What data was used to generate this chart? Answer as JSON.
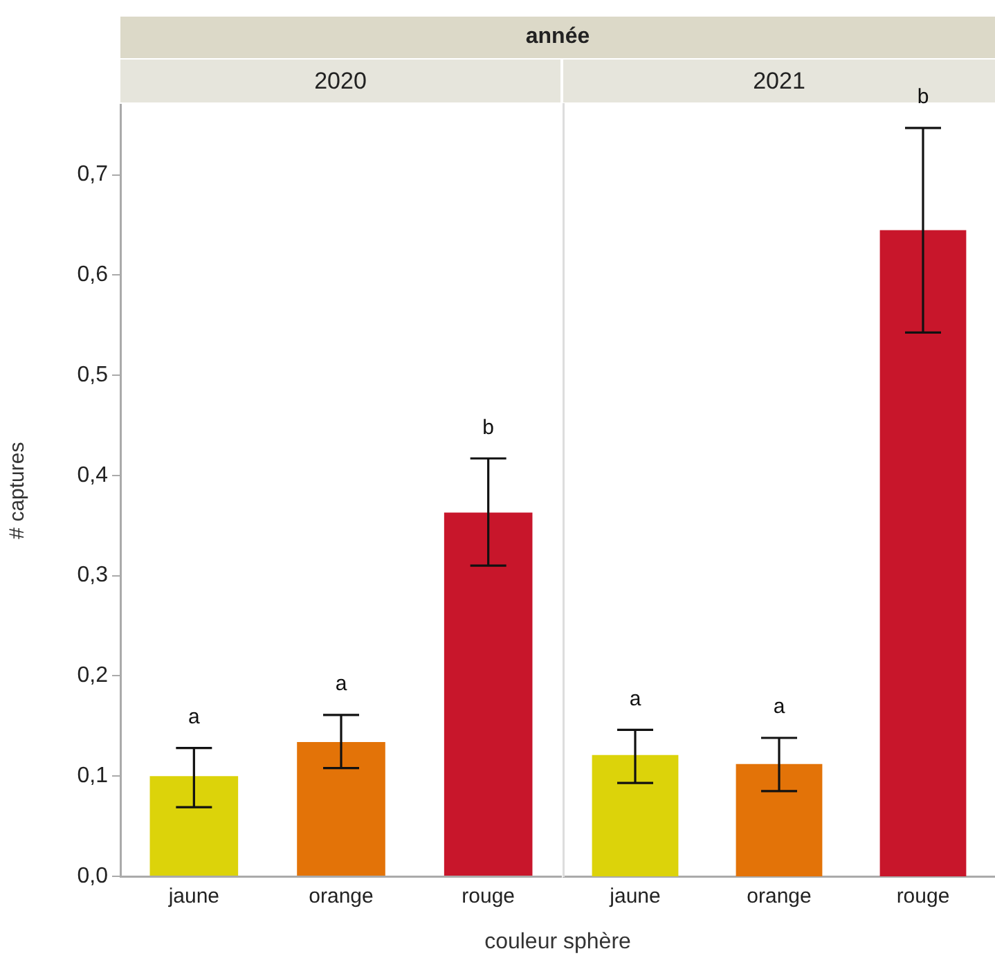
{
  "chart_data": [
    {
      "type": "bar",
      "title": "2020",
      "ylabel": "# captures",
      "xlabel": "couleur sphère",
      "categories": [
        "jaune",
        "orange",
        "rouge"
      ],
      "values": [
        0.1,
        0.134,
        0.363
      ],
      "colors": [
        "#dcd30a",
        "#e37308",
        "#c8162b"
      ],
      "errors": [
        [
          0.069,
          0.128
        ],
        [
          0.108,
          0.161
        ],
        [
          0.31,
          0.417
        ]
      ],
      "ylim": [
        0,
        0.77
      ],
      "yticks": [
        {
          "value": 0,
          "label": "0,0"
        },
        {
          "value": 0.1,
          "label": "0,1"
        },
        {
          "value": 0.2,
          "label": "0,2"
        },
        {
          "value": 0.3,
          "label": "0,3"
        },
        {
          "value": 0.4,
          "label": "0,4"
        },
        {
          "value": 0.5,
          "label": "0,5"
        },
        {
          "value": 0.6,
          "label": "0,6"
        },
        {
          "value": 0.7,
          "label": "0,7"
        }
      ],
      "grid": false,
      "legend": false,
      "annotations": [
        "année",
        "a",
        "a",
        "b"
      ]
    },
    {
      "type": "bar",
      "title": "2021",
      "categories": [
        "jaune",
        "orange",
        "rouge"
      ],
      "values": [
        0.121,
        0.112,
        0.644
      ],
      "colors": [
        "#dcd30a",
        "#e37308",
        "#c8162b"
      ],
      "errors": [
        [
          0.093,
          0.146
        ],
        [
          0.085,
          0.138
        ],
        [
          0.542,
          0.746
        ]
      ],
      "ylim": [
        0,
        0.77
      ],
      "grid": false,
      "legend": false,
      "tick_labels": "x",
      "annotations": [
        "a",
        "a",
        "b"
      ]
    }
  ]
}
